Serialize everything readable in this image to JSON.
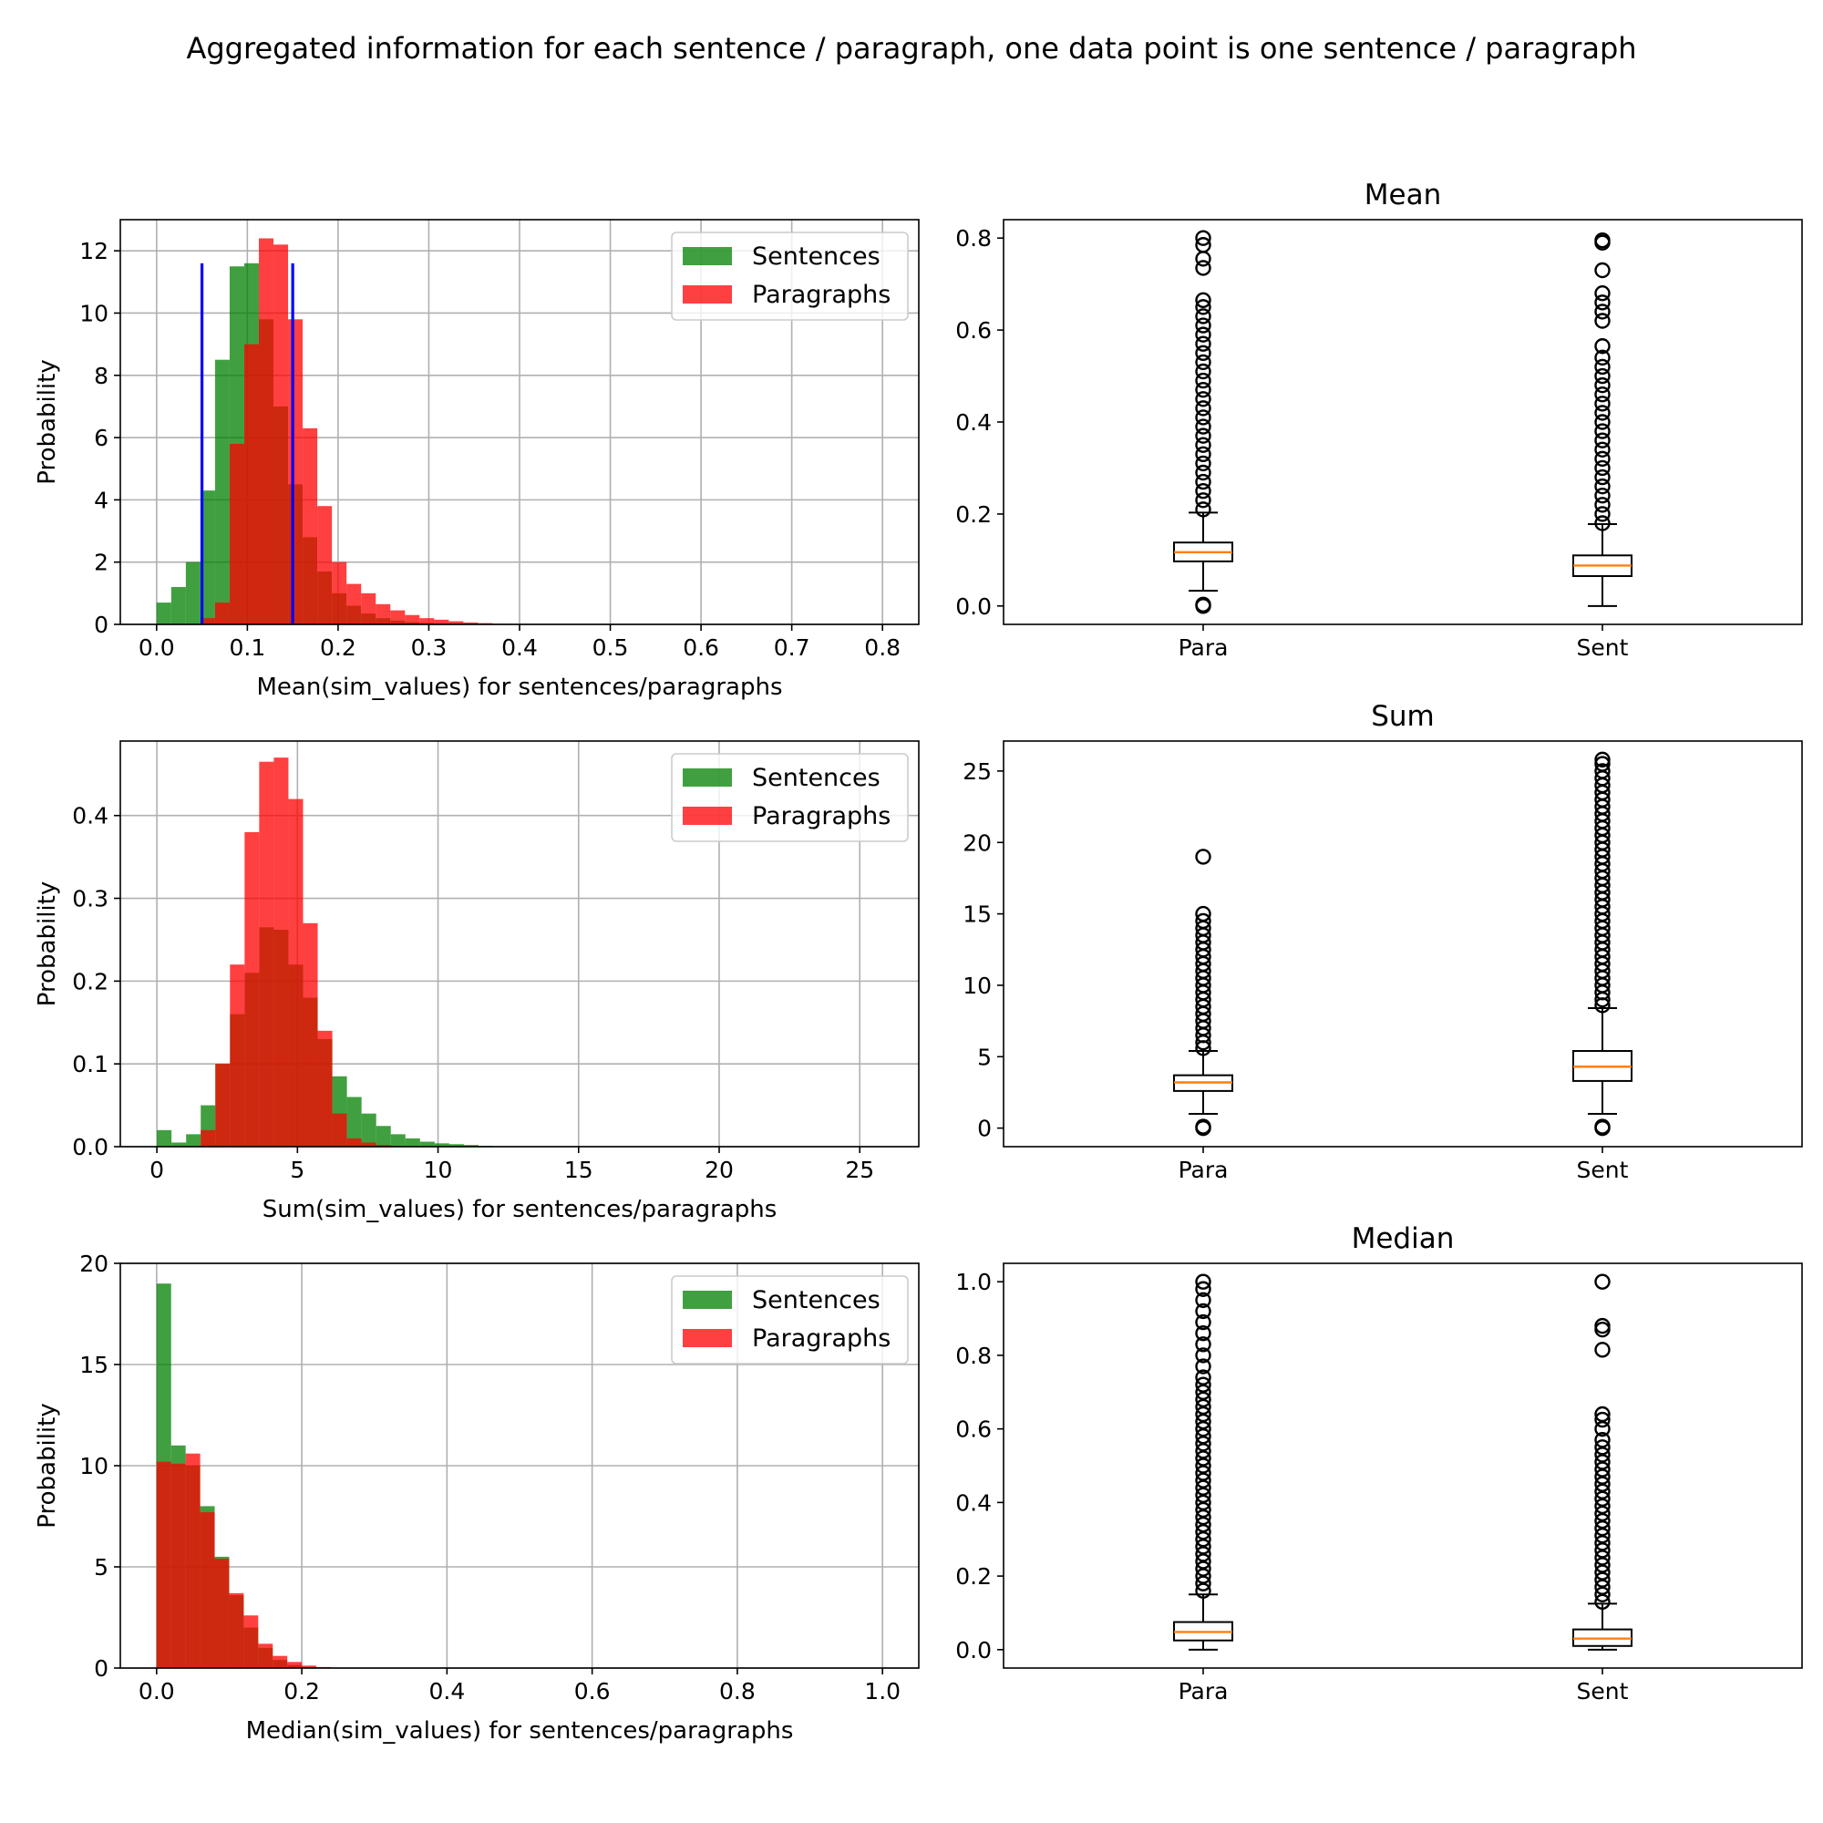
{
  "suptitle": "Aggregated information for each sentence / paragraph, one data point is one sentence / paragraph",
  "colors": {
    "sentences": "#008000",
    "paragraphs": "#ff0000",
    "vlines": "#0000ff",
    "median_line": "#ff7f0e"
  },
  "chart_data": [
    {
      "id": "hist-mean",
      "type": "bar",
      "subtype": "histogram",
      "title": "",
      "xlabel": "Mean(sim_values) for sentences/paragraphs",
      "ylabel": "Probability",
      "xlim": [
        -0.04,
        0.84
      ],
      "ylim": [
        0,
        13
      ],
      "xticks": [
        "0.0",
        "0.1",
        "0.2",
        "0.3",
        "0.4",
        "0.5",
        "0.6",
        "0.7",
        "0.8"
      ],
      "yticks": [
        "0",
        "2",
        "4",
        "6",
        "8",
        "10",
        "12"
      ],
      "grid": true,
      "legend": "top-right",
      "vlines": [
        {
          "x": 0.05,
          "y": [
            0,
            11.6
          ]
        },
        {
          "x": 0.15,
          "y": [
            0,
            11.6
          ]
        }
      ],
      "series": [
        {
          "name": "Sentences",
          "bin_start": 0.0,
          "bin_width": 0.0161,
          "values": [
            0.7,
            1.2,
            2.0,
            4.3,
            8.5,
            11.5,
            11.6,
            9.8,
            7.0,
            4.5,
            2.8,
            1.7,
            1.0,
            0.6,
            0.35,
            0.2,
            0.12,
            0.07,
            0.04,
            0.02
          ]
        },
        {
          "name": "Paragraphs",
          "bin_start": 0.0,
          "bin_width": 0.0161,
          "values": [
            0,
            0,
            0,
            0.2,
            0.7,
            5.8,
            9.0,
            12.4,
            12.2,
            9.8,
            6.3,
            3.8,
            2.0,
            1.3,
            1.0,
            0.65,
            0.45,
            0.3,
            0.2,
            0.15,
            0.1,
            0.06,
            0.04,
            0.02,
            0.01
          ]
        }
      ]
    },
    {
      "id": "box-mean",
      "type": "boxplot",
      "title": "Mean",
      "ylim": [
        -0.04,
        0.84
      ],
      "yticks": [
        "0.0",
        "0.2",
        "0.4",
        "0.6",
        "0.8"
      ],
      "categories": [
        "Para",
        "Sent"
      ],
      "boxes": [
        {
          "label": "Para",
          "whisker_low": 0.033,
          "q1": 0.097,
          "median": 0.117,
          "q3": 0.138,
          "whisker_high": 0.203,
          "outliers": [
            0.0,
            0.003,
            0.21,
            0.23,
            0.25,
            0.27,
            0.29,
            0.31,
            0.33,
            0.35,
            0.37,
            0.39,
            0.41,
            0.43,
            0.45,
            0.47,
            0.49,
            0.51,
            0.53,
            0.55,
            0.57,
            0.59,
            0.61,
            0.63,
            0.65,
            0.665,
            0.735,
            0.755,
            0.785,
            0.8
          ]
        },
        {
          "label": "Sent",
          "whisker_low": 0.0,
          "q1": 0.065,
          "median": 0.088,
          "q3": 0.11,
          "whisker_high": 0.178,
          "outliers": [
            0.18,
            0.2,
            0.22,
            0.24,
            0.26,
            0.28,
            0.3,
            0.32,
            0.34,
            0.36,
            0.38,
            0.4,
            0.42,
            0.44,
            0.46,
            0.48,
            0.5,
            0.52,
            0.54,
            0.565,
            0.62,
            0.64,
            0.66,
            0.68,
            0.73,
            0.79,
            0.795
          ]
        }
      ]
    },
    {
      "id": "hist-sum",
      "type": "bar",
      "subtype": "histogram",
      "title": "",
      "xlabel": "Sum(sim_values) for sentences/paragraphs",
      "ylabel": "Probability",
      "xlim": [
        -1.3,
        27.1
      ],
      "ylim": [
        0,
        0.49
      ],
      "xticks": [
        "0",
        "5",
        "10",
        "15",
        "20",
        "25"
      ],
      "yticks": [
        "0.0",
        "0.1",
        "0.2",
        "0.3",
        "0.4"
      ],
      "grid": true,
      "legend": "top-right",
      "series": [
        {
          "name": "Sentences",
          "bin_start": 0.0,
          "bin_width": 0.52,
          "values": [
            0.02,
            0.005,
            0.015,
            0.05,
            0.1,
            0.16,
            0.21,
            0.265,
            0.262,
            0.22,
            0.18,
            0.13,
            0.085,
            0.06,
            0.04,
            0.025,
            0.015,
            0.01,
            0.006,
            0.004,
            0.003,
            0.002,
            0.001
          ]
        },
        {
          "name": "Paragraphs",
          "bin_start": 0.52,
          "bin_width": 0.52,
          "values": [
            0,
            0.0,
            0.02,
            0.1,
            0.22,
            0.38,
            0.465,
            0.47,
            0.42,
            0.27,
            0.14,
            0.04,
            0.01,
            0.005,
            0.002
          ]
        }
      ]
    },
    {
      "id": "box-sum",
      "type": "boxplot",
      "title": "Sum",
      "ylim": [
        -1.3,
        27.1
      ],
      "yticks": [
        "0",
        "5",
        "10",
        "15",
        "20",
        "25"
      ],
      "categories": [
        "Para",
        "Sent"
      ],
      "boxes": [
        {
          "label": "Para",
          "whisker_low": 1.0,
          "q1": 2.6,
          "median": 3.2,
          "q3": 3.7,
          "whisker_high": 5.4,
          "outliers": [
            0.0,
            0.1,
            5.6,
            6.0,
            6.5,
            7.0,
            7.5,
            8.0,
            8.5,
            9.0,
            9.5,
            10.0,
            10.5,
            11.0,
            11.5,
            12.0,
            12.5,
            13.0,
            13.5,
            14.0,
            14.5,
            15.0,
            19.0
          ]
        },
        {
          "label": "Sent",
          "whisker_low": 1.0,
          "q1": 3.3,
          "median": 4.3,
          "q3": 5.4,
          "whisker_high": 8.4,
          "outliers": [
            0.0,
            0.1,
            8.6,
            9.0,
            9.5,
            10.0,
            10.5,
            11.0,
            11.5,
            12.0,
            12.5,
            13.0,
            13.5,
            14.0,
            14.5,
            15.0,
            15.5,
            16.0,
            16.5,
            17.0,
            17.5,
            18.0,
            18.5,
            19.0,
            19.5,
            20.0,
            20.5,
            21.0,
            21.5,
            22.0,
            22.5,
            23.0,
            23.5,
            24.0,
            24.5,
            25.0,
            25.5,
            25.8
          ]
        }
      ]
    },
    {
      "id": "hist-median",
      "type": "bar",
      "subtype": "histogram",
      "title": "",
      "xlabel": "Median(sim_values) for sentences/paragraphs",
      "ylabel": "Probability",
      "xlim": [
        -0.05,
        1.05
      ],
      "ylim": [
        0,
        20
      ],
      "xticks": [
        "0.0",
        "0.2",
        "0.4",
        "0.6",
        "0.8",
        "1.0"
      ],
      "yticks": [
        "0",
        "5",
        "10",
        "15",
        "20"
      ],
      "grid": true,
      "legend": "top-right",
      "series": [
        {
          "name": "Sentences",
          "bin_start": 0.0,
          "bin_width": 0.02,
          "values": [
            19.0,
            11.0,
            10.0,
            8.0,
            5.5,
            3.6,
            2.0,
            1.0,
            0.4,
            0.15,
            0.05
          ]
        },
        {
          "name": "Paragraphs",
          "bin_start": 0.0,
          "bin_width": 0.02,
          "values": [
            10.2,
            10.1,
            10.6,
            7.7,
            5.4,
            3.7,
            2.6,
            1.2,
            0.6,
            0.3,
            0.12,
            0.05
          ]
        }
      ]
    },
    {
      "id": "box-median",
      "type": "boxplot",
      "title": "Median",
      "ylim": [
        -0.05,
        1.05
      ],
      "yticks": [
        "0.0",
        "0.2",
        "0.4",
        "0.6",
        "0.8",
        "1.0"
      ],
      "categories": [
        "Para",
        "Sent"
      ],
      "boxes": [
        {
          "label": "Para",
          "whisker_low": 0.0,
          "q1": 0.025,
          "median": 0.048,
          "q3": 0.075,
          "whisker_high": 0.15,
          "outliers": [
            0.16,
            0.18,
            0.2,
            0.22,
            0.24,
            0.26,
            0.28,
            0.3,
            0.32,
            0.34,
            0.36,
            0.38,
            0.4,
            0.42,
            0.44,
            0.46,
            0.48,
            0.5,
            0.52,
            0.54,
            0.56,
            0.58,
            0.6,
            0.62,
            0.64,
            0.66,
            0.68,
            0.7,
            0.72,
            0.74,
            0.77,
            0.8,
            0.83,
            0.86,
            0.89,
            0.92,
            0.95,
            0.98,
            1.0
          ]
        },
        {
          "label": "Sent",
          "whisker_low": 0.0,
          "q1": 0.01,
          "median": 0.03,
          "q3": 0.055,
          "whisker_high": 0.125,
          "outliers": [
            0.13,
            0.15,
            0.17,
            0.19,
            0.21,
            0.23,
            0.25,
            0.27,
            0.29,
            0.31,
            0.33,
            0.35,
            0.37,
            0.39,
            0.41,
            0.43,
            0.45,
            0.47,
            0.49,
            0.51,
            0.53,
            0.55,
            0.57,
            0.6,
            0.625,
            0.64,
            0.815,
            0.87,
            0.88,
            1.0
          ]
        }
      ]
    }
  ]
}
